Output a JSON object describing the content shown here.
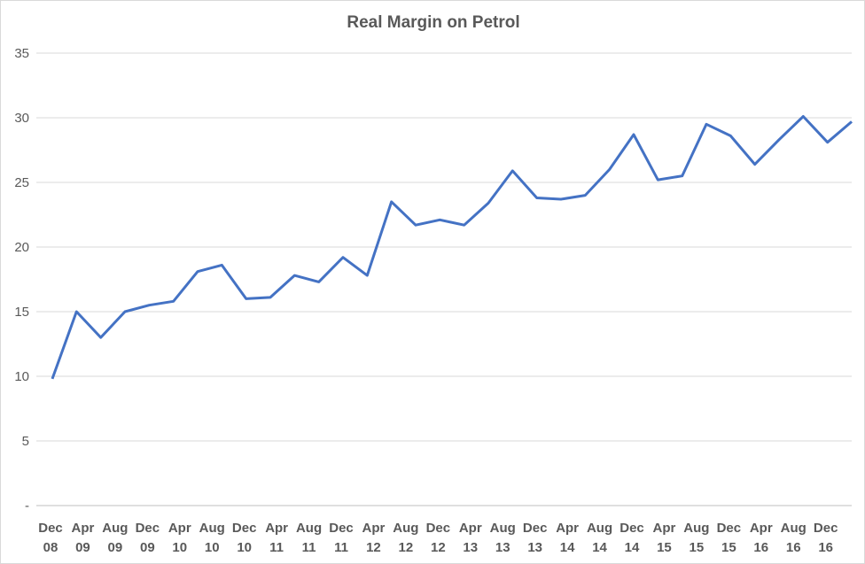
{
  "chart_data": {
    "type": "line",
    "title": "Real Margin on Petrol",
    "xlabel": "",
    "ylabel": "",
    "ylim": [
      0,
      35
    ],
    "yticks": [
      0,
      5,
      10,
      15,
      20,
      25,
      30,
      35
    ],
    "ytick_labels": [
      "-",
      "5",
      "10",
      "15",
      "20",
      "25",
      "30",
      "35"
    ],
    "grid": true,
    "x_tick_labels": [
      [
        "Dec",
        "08"
      ],
      [
        "Apr",
        "09"
      ],
      [
        "Aug",
        "09"
      ],
      [
        "Dec",
        "09"
      ],
      [
        "Apr",
        "10"
      ],
      [
        "Aug",
        "10"
      ],
      [
        "Dec",
        "10"
      ],
      [
        "Apr",
        "11"
      ],
      [
        "Aug",
        "11"
      ],
      [
        "Dec",
        "11"
      ],
      [
        "Apr",
        "12"
      ],
      [
        "Aug",
        "12"
      ],
      [
        "Dec",
        "12"
      ],
      [
        "Apr",
        "13"
      ],
      [
        "Aug",
        "13"
      ],
      [
        "Dec",
        "13"
      ],
      [
        "Apr",
        "14"
      ],
      [
        "Aug",
        "14"
      ],
      [
        "Dec",
        "14"
      ],
      [
        "Apr",
        "15"
      ],
      [
        "Aug",
        "15"
      ],
      [
        "Dec",
        "15"
      ],
      [
        "Apr",
        "16"
      ],
      [
        "Aug",
        "16"
      ],
      [
        "Dec",
        "16"
      ]
    ],
    "x_months_total": 100,
    "point_interval_months": 3,
    "series": [
      {
        "name": "Real Margin on Petrol",
        "color": "#4472c4",
        "values": [
          9.8,
          15.0,
          13.0,
          15.0,
          15.5,
          15.8,
          18.1,
          18.6,
          16.0,
          16.1,
          17.8,
          17.3,
          19.2,
          17.8,
          23.5,
          21.7,
          22.1,
          21.7,
          23.4,
          25.9,
          23.8,
          23.7,
          24.0,
          26.0,
          28.7,
          25.2,
          25.5,
          29.5,
          28.6,
          26.4,
          28.3,
          30.1,
          28.1,
          29.7
        ]
      }
    ]
  }
}
